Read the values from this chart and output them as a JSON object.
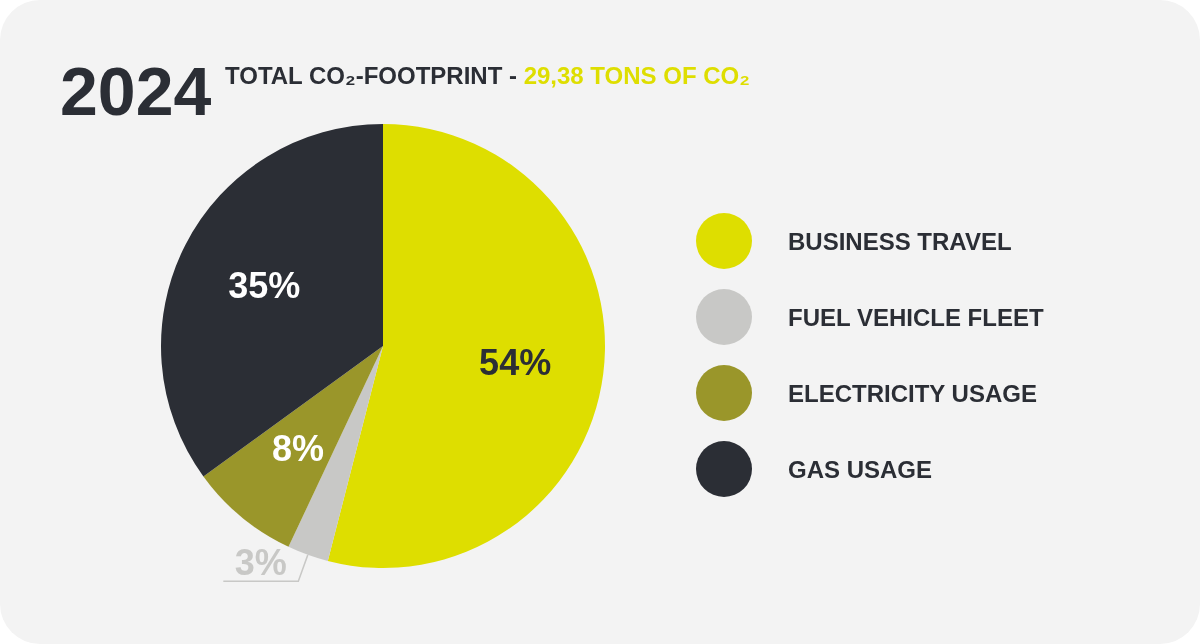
{
  "chart_data": {
    "type": "pie",
    "title": "2024",
    "subtitle": "TOTAL CO₂-FOOTPRINT - ",
    "annotations": [
      "29,38 TONS OF CO₂"
    ],
    "categories": [
      "BUSINESS TRAVEL",
      "FUEL VEHICLE FLEET",
      "ELECTRICITY USAGE",
      "GAS USAGE"
    ],
    "values": [
      54,
      3,
      8,
      35
    ],
    "colors": [
      "#dede00",
      "#c8c8c6",
      "#9a962a",
      "#2b2e35"
    ],
    "value_labels": [
      "54%",
      "3%",
      "8%",
      "35%"
    ],
    "legend": "right"
  }
}
